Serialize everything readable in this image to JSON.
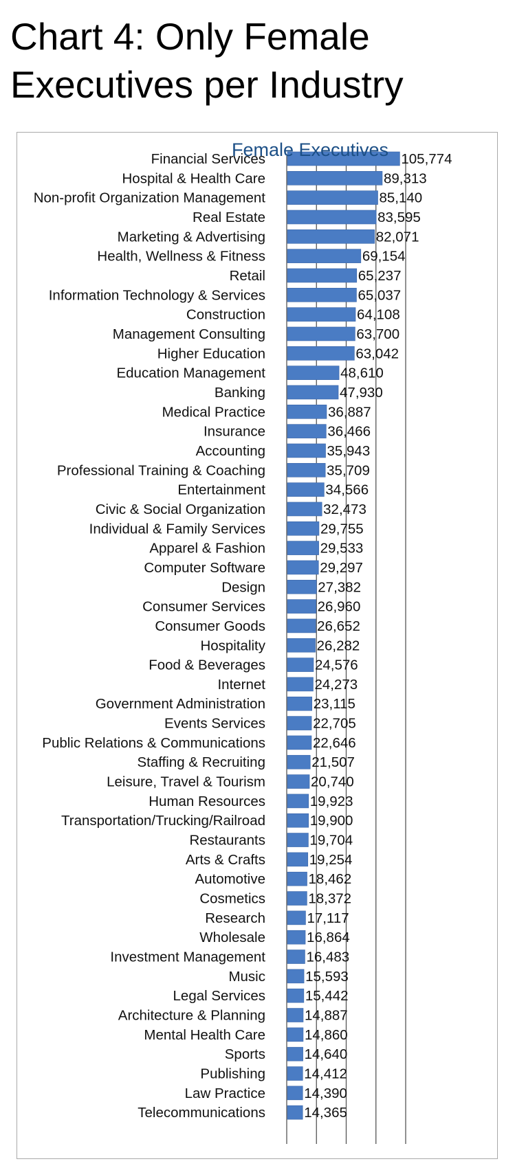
{
  "title": "Chart 4: Only Female Executives per Industry",
  "chart_data": {
    "type": "bar",
    "orientation": "horizontal",
    "legend_position": "top",
    "series": [
      {
        "name": "Female Executives",
        "color": "#4a7cc4",
        "values": [
          105774,
          89313,
          85140,
          83595,
          82071,
          69154,
          65237,
          65037,
          64108,
          63700,
          63042,
          48610,
          47930,
          36887,
          36466,
          35943,
          35709,
          34566,
          32473,
          29755,
          29533,
          29297,
          27382,
          26960,
          26652,
          26282,
          24576,
          24273,
          23115,
          22705,
          22646,
          21507,
          20740,
          19923,
          19900,
          19704,
          19254,
          18462,
          18372,
          17117,
          16864,
          16483,
          15593,
          15442,
          14887,
          14860,
          14640,
          14412,
          14390,
          14365
        ]
      }
    ],
    "value_labels": [
      "105,774",
      "89,313",
      "85,140",
      "83,595",
      "82,071",
      "69,154",
      "65,237",
      "65,037",
      "64,108",
      "63,700",
      "63,042",
      "48,610",
      "47,930",
      "36,887",
      "36,466",
      "35,943",
      "35,709",
      "34,566",
      "32,473",
      "29,755",
      "29,533",
      "29,297",
      "27,382",
      "26,960",
      "26,652",
      "26,282",
      "24,576",
      "24,273",
      "23,115",
      "22,705",
      "22,646",
      "21,507",
      "20,740",
      "19,923",
      "19,900",
      "19,704",
      "19,254",
      "18,462",
      "18,372",
      "17,117",
      "16,864",
      "16,483",
      "15,593",
      "15,442",
      "14,887",
      "14,860",
      "14,640",
      "14,412",
      "14,390",
      "14,365"
    ],
    "categories": [
      "Financial Services",
      "Hospital & Health Care",
      "Non-profit Organization Management",
      "Real Estate",
      "Marketing & Advertising",
      "Health, Wellness & Fitness",
      "Retail",
      "Information Technology & Services",
      "Construction",
      "Management Consulting",
      "Higher Education",
      "Education Management",
      "Banking",
      "Medical Practice",
      "Insurance",
      "Accounting",
      "Professional Training & Coaching",
      "Entertainment",
      "Civic & Social Organization",
      "Individual & Family Services",
      "Apparel & Fashion",
      "Computer Software",
      "Design",
      "Consumer Services",
      "Consumer Goods",
      "Hospitality",
      "Food & Beverages",
      "Internet",
      "Government Administration",
      "Events Services",
      "Public Relations & Communications",
      "Staffing & Recruiting",
      "Leisure, Travel & Tourism",
      "Human Resources",
      "Transportation/Trucking/Railroad",
      "Restaurants",
      "Arts & Crafts",
      "Automotive",
      "Cosmetics",
      "Research",
      "Wholesale",
      "Investment Management",
      "Music",
      "Legal Services",
      "Architecture & Planning",
      "Mental Health Care",
      "Sports",
      "Publishing",
      "Law Practice",
      "Telecommunications"
    ],
    "xlim": [
      0,
      112000
    ],
    "gridlines_at": [
      0,
      28000,
      56000,
      84000,
      112000
    ],
    "grid": true
  }
}
